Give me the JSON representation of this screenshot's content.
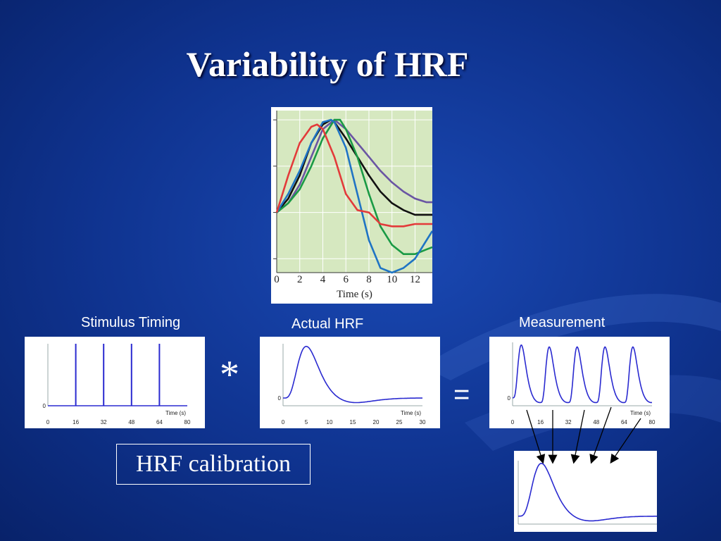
{
  "slide": {
    "title": "Variability of HRF",
    "calibration_label": "HRF calibration",
    "convolve_symbol": "*",
    "equals_symbol": "="
  },
  "colors": {
    "curve_blue": "#1f74c4",
    "curve_green": "#1a9a45",
    "curve_red": "#e33a3a",
    "curve_black": "#111111",
    "curve_purple": "#6a55a3",
    "plot_bg_green": "#d6e8c0",
    "panel_line": "#2a2ad0"
  },
  "chart_data": [
    {
      "type": "line",
      "id": "variability",
      "xlabel": "Time (s)",
      "xticks": [
        0,
        2,
        4,
        6,
        8,
        10,
        12
      ],
      "xlim": [
        0,
        13.5
      ],
      "ylim": [
        -1.3,
        2.2
      ],
      "grid": true,
      "series": [
        {
          "color": "#6a55a3",
          "x": [
            0,
            1,
            2,
            3,
            4,
            5,
            6,
            7,
            8,
            9,
            10,
            11,
            12,
            13,
            13.5
          ],
          "y": [
            0,
            0.2,
            0.6,
            1.2,
            1.8,
            2.0,
            1.8,
            1.5,
            1.2,
            0.9,
            0.65,
            0.45,
            0.3,
            0.22,
            0.22
          ]
        },
        {
          "color": "#111111",
          "x": [
            0,
            1,
            2,
            3,
            4,
            4.7,
            5,
            6,
            7,
            8,
            9,
            10,
            11,
            12,
            13,
            13.5
          ],
          "y": [
            0,
            0.3,
            0.8,
            1.5,
            1.9,
            2.0,
            1.95,
            1.6,
            1.2,
            0.8,
            0.45,
            0.2,
            0.05,
            -0.05,
            -0.05,
            -0.05
          ]
        },
        {
          "color": "#1a9a45",
          "x": [
            0,
            1,
            2,
            3,
            4,
            5,
            5.5,
            6,
            7,
            8,
            9,
            10,
            11,
            12,
            13,
            13.5
          ],
          "y": [
            0,
            0.2,
            0.5,
            1.0,
            1.6,
            2.0,
            2.0,
            1.8,
            1.2,
            0.4,
            -0.3,
            -0.7,
            -0.9,
            -0.9,
            -0.8,
            -0.75
          ]
        },
        {
          "color": "#1f74c4",
          "x": [
            0,
            1,
            2,
            3,
            4,
            4.7,
            5,
            6,
            7,
            8,
            9,
            10,
            11,
            12,
            13,
            13.5
          ],
          "y": [
            0,
            0.4,
            0.9,
            1.5,
            1.95,
            2.0,
            1.95,
            1.4,
            0.4,
            -0.6,
            -1.2,
            -1.3,
            -1.2,
            -1.0,
            -0.6,
            -0.4
          ]
        },
        {
          "color": "#e33a3a",
          "x": [
            0,
            1,
            2,
            3,
            3.5,
            4,
            5,
            6,
            7,
            8,
            9,
            10,
            11,
            12,
            13,
            13.5
          ],
          "y": [
            0,
            0.8,
            1.5,
            1.85,
            1.9,
            1.8,
            1.2,
            0.4,
            0.05,
            0.0,
            -0.25,
            -0.3,
            -0.3,
            -0.25,
            -0.25,
            -0.25
          ]
        }
      ]
    },
    {
      "type": "line",
      "id": "stimulus",
      "title": "Stimulus Timing",
      "xlabel": "Time (s)",
      "xticks": [
        0,
        16,
        32,
        48,
        64,
        80
      ],
      "yticks": [
        0
      ],
      "xlim": [
        0,
        80
      ],
      "ylim": [
        0,
        1
      ],
      "spikes_at": [
        16,
        32,
        48,
        64
      ]
    },
    {
      "type": "line",
      "id": "actual_hrf",
      "title": "Actual HRF",
      "xlabel": "Time (s)",
      "xticks": [
        0,
        5,
        10,
        15,
        20,
        25,
        30
      ],
      "yticks": [
        0
      ],
      "xlim": [
        0,
        30
      ],
      "ylim": [
        -0.15,
        1.05
      ],
      "peak_time": 5
    },
    {
      "type": "line",
      "id": "measurement",
      "title": "Measurement",
      "xlabel": "Time (s)",
      "xticks": [
        0,
        16,
        32,
        48,
        64,
        80
      ],
      "yticks": [
        0
      ],
      "xlim": [
        0,
        80
      ],
      "ylim": [
        -0.15,
        1.05
      ],
      "stimuli_at": [
        0,
        16,
        32,
        48,
        64
      ]
    },
    {
      "type": "line",
      "id": "estimated_hrf",
      "xlim": [
        0,
        30
      ],
      "ylim": [
        -0.15,
        1.05
      ],
      "peak_time": 5
    }
  ]
}
